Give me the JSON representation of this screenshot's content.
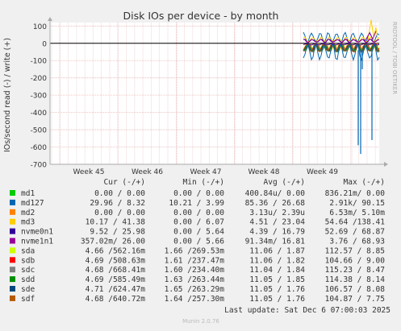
{
  "chart_data": {
    "type": "line",
    "title": "Disk IOs per device - by month",
    "ylabel": "IOs/second read (-) / write (+)",
    "watermark": "RRDTOOL / TOBI OETIKER",
    "ylim": [
      -700,
      120
    ],
    "yticks": [
      100,
      0,
      -100,
      -200,
      -300,
      -400,
      -500,
      -600,
      -700
    ],
    "xticks": [
      "Week 45",
      "Week 46",
      "Week 47",
      "Week 48",
      "Week 49"
    ],
    "grid": true,
    "legend_header": {
      "cur": "Cur (-/+)",
      "min": "Min (-/+)",
      "avg": "Avg (-/+)",
      "max": "Max (-/+)"
    },
    "series": [
      {
        "name": "md1",
        "color": "#00cc00",
        "cur": "0.00 /  0.00",
        "min": "0.00 /  0.00",
        "avg": "400.84u/  0.00",
        "max": "836.21m/  0.00"
      },
      {
        "name": "md127",
        "color": "#0066b3",
        "cur": "29.96 /  8.32",
        "min": "10.21 /  3.99",
        "avg": "85.36 / 26.68",
        "max": "2.91k/ 90.15"
      },
      {
        "name": "md2",
        "color": "#ff8000",
        "cur": "0.00 /  0.00",
        "min": "0.00 /  0.00",
        "avg": "3.13u/  2.39u",
        "max": "6.53m/  5.10m"
      },
      {
        "name": "md3",
        "color": "#ffcc00",
        "cur": "10.17 / 41.38",
        "min": "0.00 /  6.07",
        "avg": "4.51 / 23.04",
        "max": "54.64 /138.41"
      },
      {
        "name": "nvme0n1",
        "color": "#330099",
        "cur": "9.52 / 25.98",
        "min": "0.00 /  5.64",
        "avg": "4.39 / 16.79",
        "max": "52.69 / 68.87"
      },
      {
        "name": "nvme1n1",
        "color": "#990099",
        "cur": "357.02m/ 26.00",
        "min": "0.00 /  5.66",
        "avg": "91.34m/ 16.81",
        "max": "3.76 / 68.93"
      },
      {
        "name": "sda",
        "color": "#ccff00",
        "cur": "4.66 /562.16m",
        "min": "1.66 /269.53m",
        "avg": "11.06 /  1.87",
        "max": "112.57 /  8.85"
      },
      {
        "name": "sdb",
        "color": "#ff0000",
        "cur": "4.69 /508.63m",
        "min": "1.61 /237.47m",
        "avg": "11.06 /  1.82",
        "max": "104.66 /  9.00"
      },
      {
        "name": "sdc",
        "color": "#808080",
        "cur": "4.68 /668.41m",
        "min": "1.60 /234.40m",
        "avg": "11.04 /  1.84",
        "max": "115.23 /  8.47"
      },
      {
        "name": "sdd",
        "color": "#008f00",
        "cur": "4.69 /585.49m",
        "min": "1.63 /263.44m",
        "avg": "11.05 /  1.85",
        "max": "114.38 /  8.14"
      },
      {
        "name": "sde",
        "color": "#00487d",
        "cur": "4.71 /624.47m",
        "min": "1.65 /263.29m",
        "avg": "11.05 /  1.76",
        "max": "106.57 /  8.08"
      },
      {
        "name": "sdf",
        "color": "#b35a00",
        "cur": "4.68 /640.72m",
        "min": "1.64 /257.30m",
        "avg": "11.05 /  1.76",
        "max": "104.87 /  7.75"
      }
    ],
    "last_update": "Last update: Sat Dec  6 07:00:03 2025",
    "footer": "Munin 2.0.76"
  }
}
